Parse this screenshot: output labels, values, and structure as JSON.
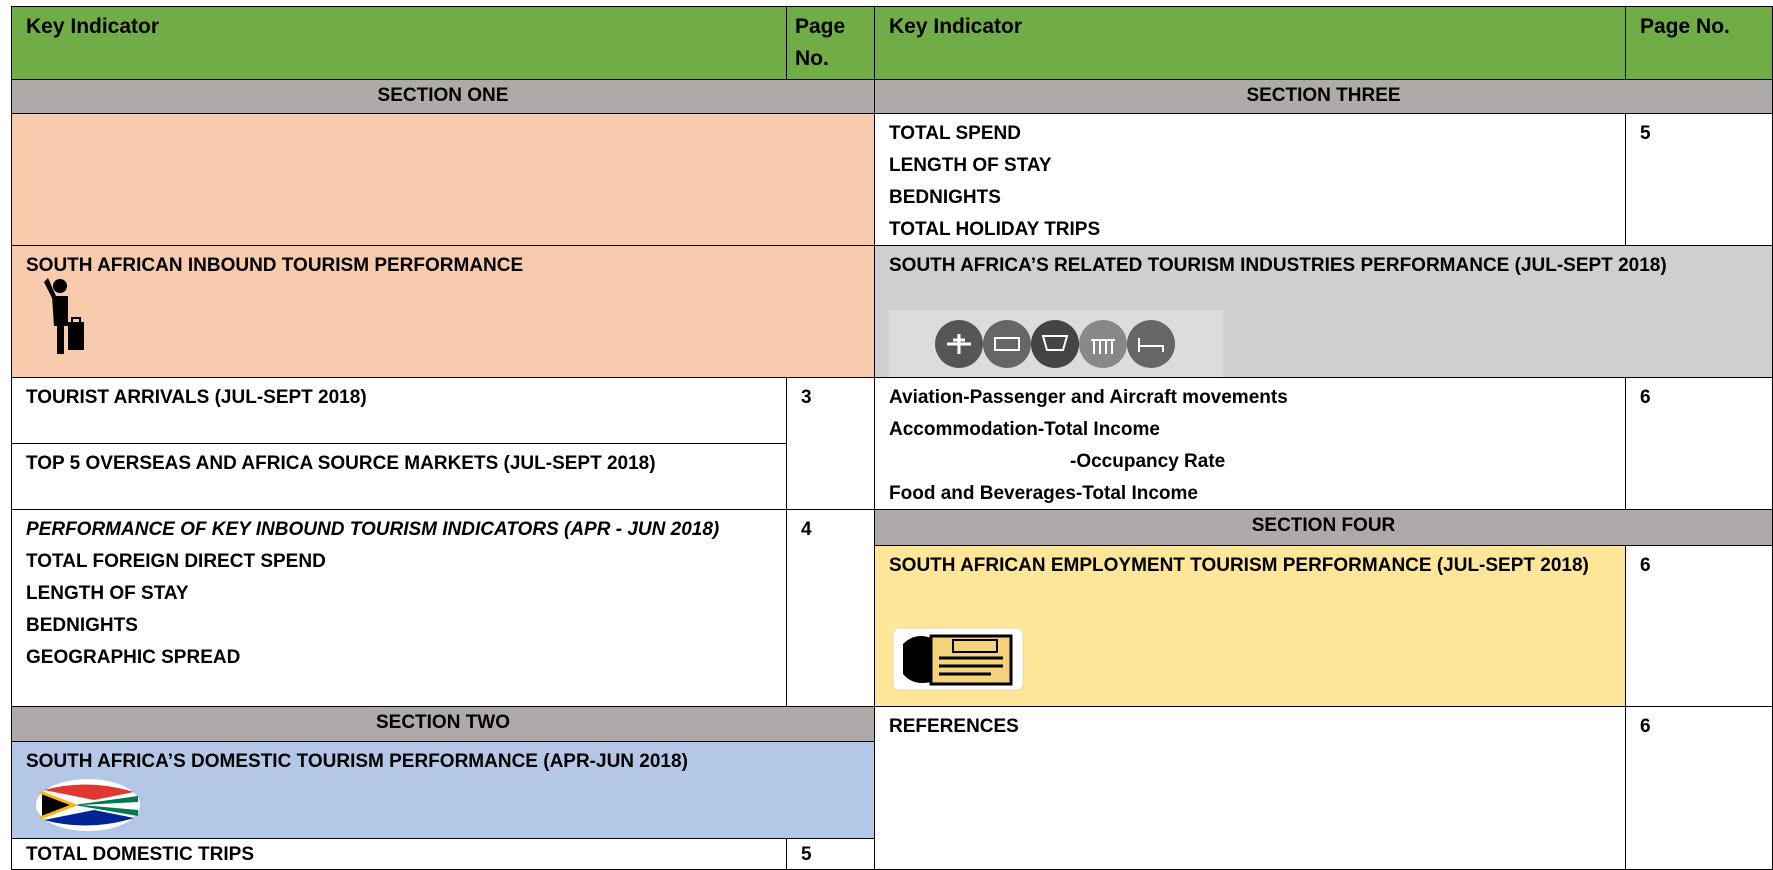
{
  "header": {
    "key_left": "Key Indicator",
    "page_left": "Page No.",
    "key_right": "Key Indicator",
    "page_right": "Page No."
  },
  "section_one": {
    "title": "SECTION ONE",
    "heading": "SOUTH AFRICAN INBOUND TOURISM PERFORMANCE",
    "items": [
      "TOURIST ARRIVALS  (JUL-SEPT 2018)",
      "TOP 5 OVERSEAS AND AFRICA SOURCE MARKETS (JUL-SEPT 2018)"
    ],
    "items_page": 3,
    "performance": {
      "title": "PERFORMANCE OF KEY INBOUND TOURISM INDICATORS (APR - JUN 2018)",
      "items": [
        "TOTAL FOREIGN DIRECT SPEND",
        "LENGTH OF STAY",
        "BEDNIGHTS",
        "GEOGRAPHIC SPREAD"
      ],
      "page": 4
    }
  },
  "section_two": {
    "title": "SECTION TWO",
    "heading": "SOUTH AFRICA’S DOMESTIC TOURISM PERFORMANCE (APR-JUN 2018)",
    "items": [
      "TOTAL DOMESTIC TRIPS"
    ],
    "page": 5
  },
  "section_three": {
    "title": "SECTION THREE",
    "items": [
      "TOTAL SPEND",
      "LENGTH OF STAY",
      "BEDNIGHTS",
      "TOTAL HOLIDAY TRIPS"
    ],
    "page": 5,
    "heading": "SOUTH AFRICA’S RELATED TOURISM INDUSTRIES PERFORMANCE (JUL-SEPT 2018)",
    "industries": [
      "Aviation-Passenger and Aircraft movements",
      "Accommodation-Total Income",
      "-Occupancy Rate",
      "Food and Beverages-Total Income"
    ],
    "industries_page": 6
  },
  "section_four": {
    "title": "SECTION FOUR",
    "heading": "SOUTH AFRICAN EMPLOYMENT TOURISM PERFORMANCE (JUL-SEPT 2018)",
    "page": 6
  },
  "references": {
    "label": "REFERENCES",
    "page": 6
  }
}
